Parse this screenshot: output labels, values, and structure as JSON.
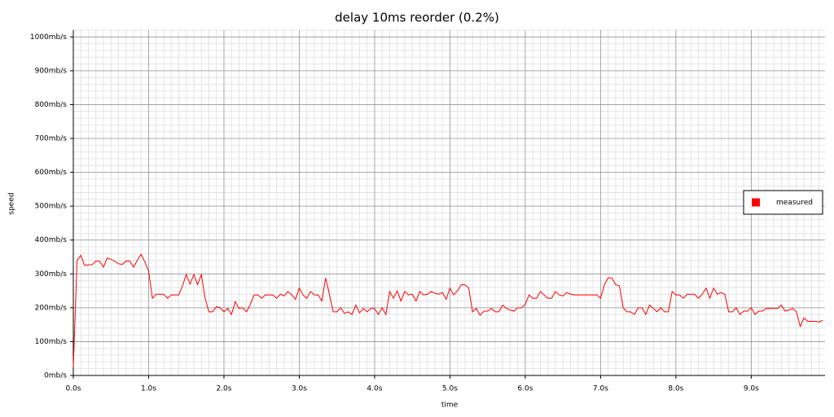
{
  "chart_data": {
    "type": "line",
    "title": "delay 10ms reorder (0.2%)",
    "x_label": "time",
    "y_label": "speed",
    "x": [
      0,
      0.05,
      0.1,
      0.15,
      0.2,
      0.25,
      0.3,
      0.35,
      0.4,
      0.45,
      0.5,
      0.55,
      0.6,
      0.65,
      0.7,
      0.75,
      0.8,
      0.85,
      0.9,
      0.95,
      1,
      1.05,
      1.1,
      1.15,
      1.2,
      1.25,
      1.3,
      1.35,
      1.4,
      1.45,
      1.5,
      1.55,
      1.6,
      1.65,
      1.7,
      1.75,
      1.8,
      1.85,
      1.9,
      1.95,
      2,
      2.05,
      2.1,
      2.15,
      2.2,
      2.25,
      2.3,
      2.35,
      2.4,
      2.45,
      2.5,
      2.55,
      2.6,
      2.65,
      2.7,
      2.75,
      2.8,
      2.85,
      2.9,
      2.95,
      3,
      3.05,
      3.1,
      3.15,
      3.2,
      3.25,
      3.3,
      3.35,
      3.4,
      3.45,
      3.5,
      3.55,
      3.6,
      3.65,
      3.7,
      3.75,
      3.8,
      3.85,
      3.9,
      3.95,
      4,
      4.05,
      4.1,
      4.15,
      4.2,
      4.25,
      4.3,
      4.35,
      4.4,
      4.45,
      4.5,
      4.55,
      4.6,
      4.65,
      4.7,
      4.75,
      4.8,
      4.85,
      4.9,
      4.95,
      5,
      5.05,
      5.1,
      5.15,
      5.2,
      5.25,
      5.3,
      5.35,
      5.4,
      5.45,
      5.5,
      5.55,
      5.6,
      5.65,
      5.7,
      5.75,
      5.8,
      5.85,
      5.9,
      5.95,
      6,
      6.05,
      6.1,
      6.15,
      6.2,
      6.25,
      6.3,
      6.35,
      6.4,
      6.45,
      6.5,
      6.55,
      6.6,
      6.65,
      6.7,
      6.75,
      6.8,
      6.85,
      6.9,
      6.95,
      7,
      7.05,
      7.1,
      7.15,
      7.2,
      7.25,
      7.3,
      7.35,
      7.4,
      7.45,
      7.5,
      7.55,
      7.6,
      7.65,
      7.7,
      7.75,
      7.8,
      7.85,
      7.9,
      7.95,
      8,
      8.05,
      8.1,
      8.15,
      8.2,
      8.25,
      8.3,
      8.35,
      8.4,
      8.45,
      8.5,
      8.55,
      8.6,
      8.65,
      8.7,
      8.75,
      8.8,
      8.85,
      8.9,
      8.95,
      9,
      9.05,
      9.1,
      9.15,
      9.2,
      9.25,
      9.3,
      9.35,
      9.4,
      9.45,
      9.5,
      9.55,
      9.6,
      9.65,
      9.7,
      9.75,
      9.8,
      9.85,
      9.9,
      9.95
    ],
    "series": [
      {
        "name": "measured",
        "color": "#ff0000",
        "values": [
          25,
          340,
          355,
          325,
          327,
          327,
          338,
          337,
          320,
          347,
          343,
          338,
          330,
          328,
          338,
          338,
          320,
          340,
          358,
          335,
          308,
          228,
          240,
          240,
          240,
          228,
          238,
          238,
          238,
          265,
          298,
          270,
          298,
          268,
          298,
          228,
          188,
          188,
          203,
          200,
          188,
          198,
          180,
          218,
          198,
          200,
          188,
          210,
          238,
          238,
          228,
          238,
          238,
          238,
          228,
          240,
          235,
          248,
          238,
          225,
          258,
          238,
          228,
          248,
          238,
          238,
          220,
          288,
          240,
          188,
          188,
          200,
          183,
          188,
          180,
          208,
          185,
          198,
          188,
          198,
          198,
          180,
          200,
          180,
          248,
          228,
          250,
          220,
          248,
          238,
          240,
          220,
          248,
          238,
          240,
          248,
          243,
          240,
          245,
          225,
          258,
          238,
          250,
          268,
          268,
          258,
          188,
          198,
          178,
          190,
          190,
          198,
          188,
          188,
          208,
          198,
          193,
          190,
          200,
          200,
          210,
          238,
          228,
          228,
          248,
          238,
          228,
          228,
          248,
          238,
          235,
          245,
          240,
          238,
          238,
          238,
          238,
          238,
          238,
          238,
          228,
          268,
          288,
          288,
          268,
          265,
          200,
          188,
          188,
          180,
          200,
          200,
          180,
          208,
          198,
          188,
          200,
          188,
          188,
          248,
          238,
          238,
          228,
          240,
          240,
          240,
          228,
          240,
          258,
          228,
          258,
          240,
          245,
          240,
          188,
          188,
          200,
          180,
          190,
          190,
          200,
          180,
          190,
          190,
          198,
          198,
          198,
          198,
          208,
          190,
          193,
          198,
          188,
          145,
          170,
          160,
          160,
          160,
          158,
          163
        ]
      }
    ],
    "xlim": [
      0,
      9.98
    ],
    "ylim": [
      0,
      1020
    ],
    "xticks": [
      {
        "value": 0,
        "label": "0.0s"
      },
      {
        "value": 1,
        "label": "1.0s"
      },
      {
        "value": 2,
        "label": "2.0s"
      },
      {
        "value": 3,
        "label": "3.0s"
      },
      {
        "value": 4,
        "label": "4.0s"
      },
      {
        "value": 5,
        "label": "5.0s"
      },
      {
        "value": 6,
        "label": "6.0s"
      },
      {
        "value": 7,
        "label": "7.0s"
      },
      {
        "value": 8,
        "label": "8.0s"
      },
      {
        "value": 9,
        "label": "9.0s"
      }
    ],
    "yticks": [
      {
        "value": 0,
        "label": "0mb/s"
      },
      {
        "value": 100,
        "label": "100mb/s"
      },
      {
        "value": 200,
        "label": "200mb/s"
      },
      {
        "value": 300,
        "label": "300mb/s"
      },
      {
        "value": 400,
        "label": "400mb/s"
      },
      {
        "value": 500,
        "label": "500mb/s"
      },
      {
        "value": 600,
        "label": "600mb/s"
      },
      {
        "value": 700,
        "label": "700mb/s"
      },
      {
        "value": 800,
        "label": "800mb/s"
      },
      {
        "value": 900,
        "label": "900mb/s"
      },
      {
        "value": 1000,
        "label": "1000mb/s"
      }
    ],
    "grid": true,
    "minor_grid": true,
    "legend": "right"
  }
}
